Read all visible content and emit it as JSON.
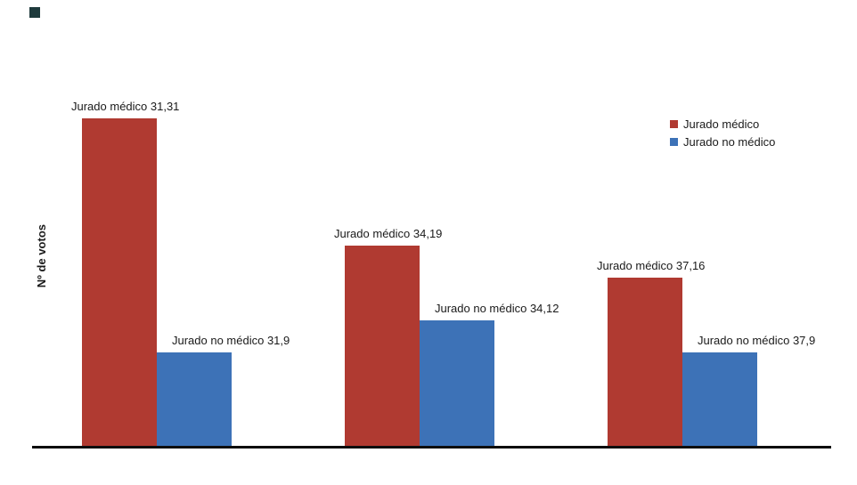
{
  "chart_data": {
    "type": "bar",
    "title": "",
    "ylabel": "Nº de votos",
    "xlabel": "",
    "categories": [
      "31",
      "34",
      "37"
    ],
    "series": [
      {
        "name": "Jurado médico",
        "color": "#b03a31",
        "values": [
          31,
          19,
          16
        ],
        "labels": [
          "Jurado médico 31,31",
          "Jurado médico 34,19",
          "Jurado médico 37,16"
        ]
      },
      {
        "name": "Jurado no médico",
        "color": "#3d72b7",
        "values": [
          9,
          12,
          9
        ],
        "labels": [
          "Jurado no médico 31,9",
          "Jurado no médico 34,12",
          "Jurado no médico 37,9"
        ]
      }
    ],
    "ylim": [
      0,
      31
    ],
    "grid": false,
    "legend_position": "top-right"
  },
  "legend": {
    "items": [
      {
        "label": "Jurado médico"
      },
      {
        "label": "Jurado no médico"
      }
    ]
  }
}
